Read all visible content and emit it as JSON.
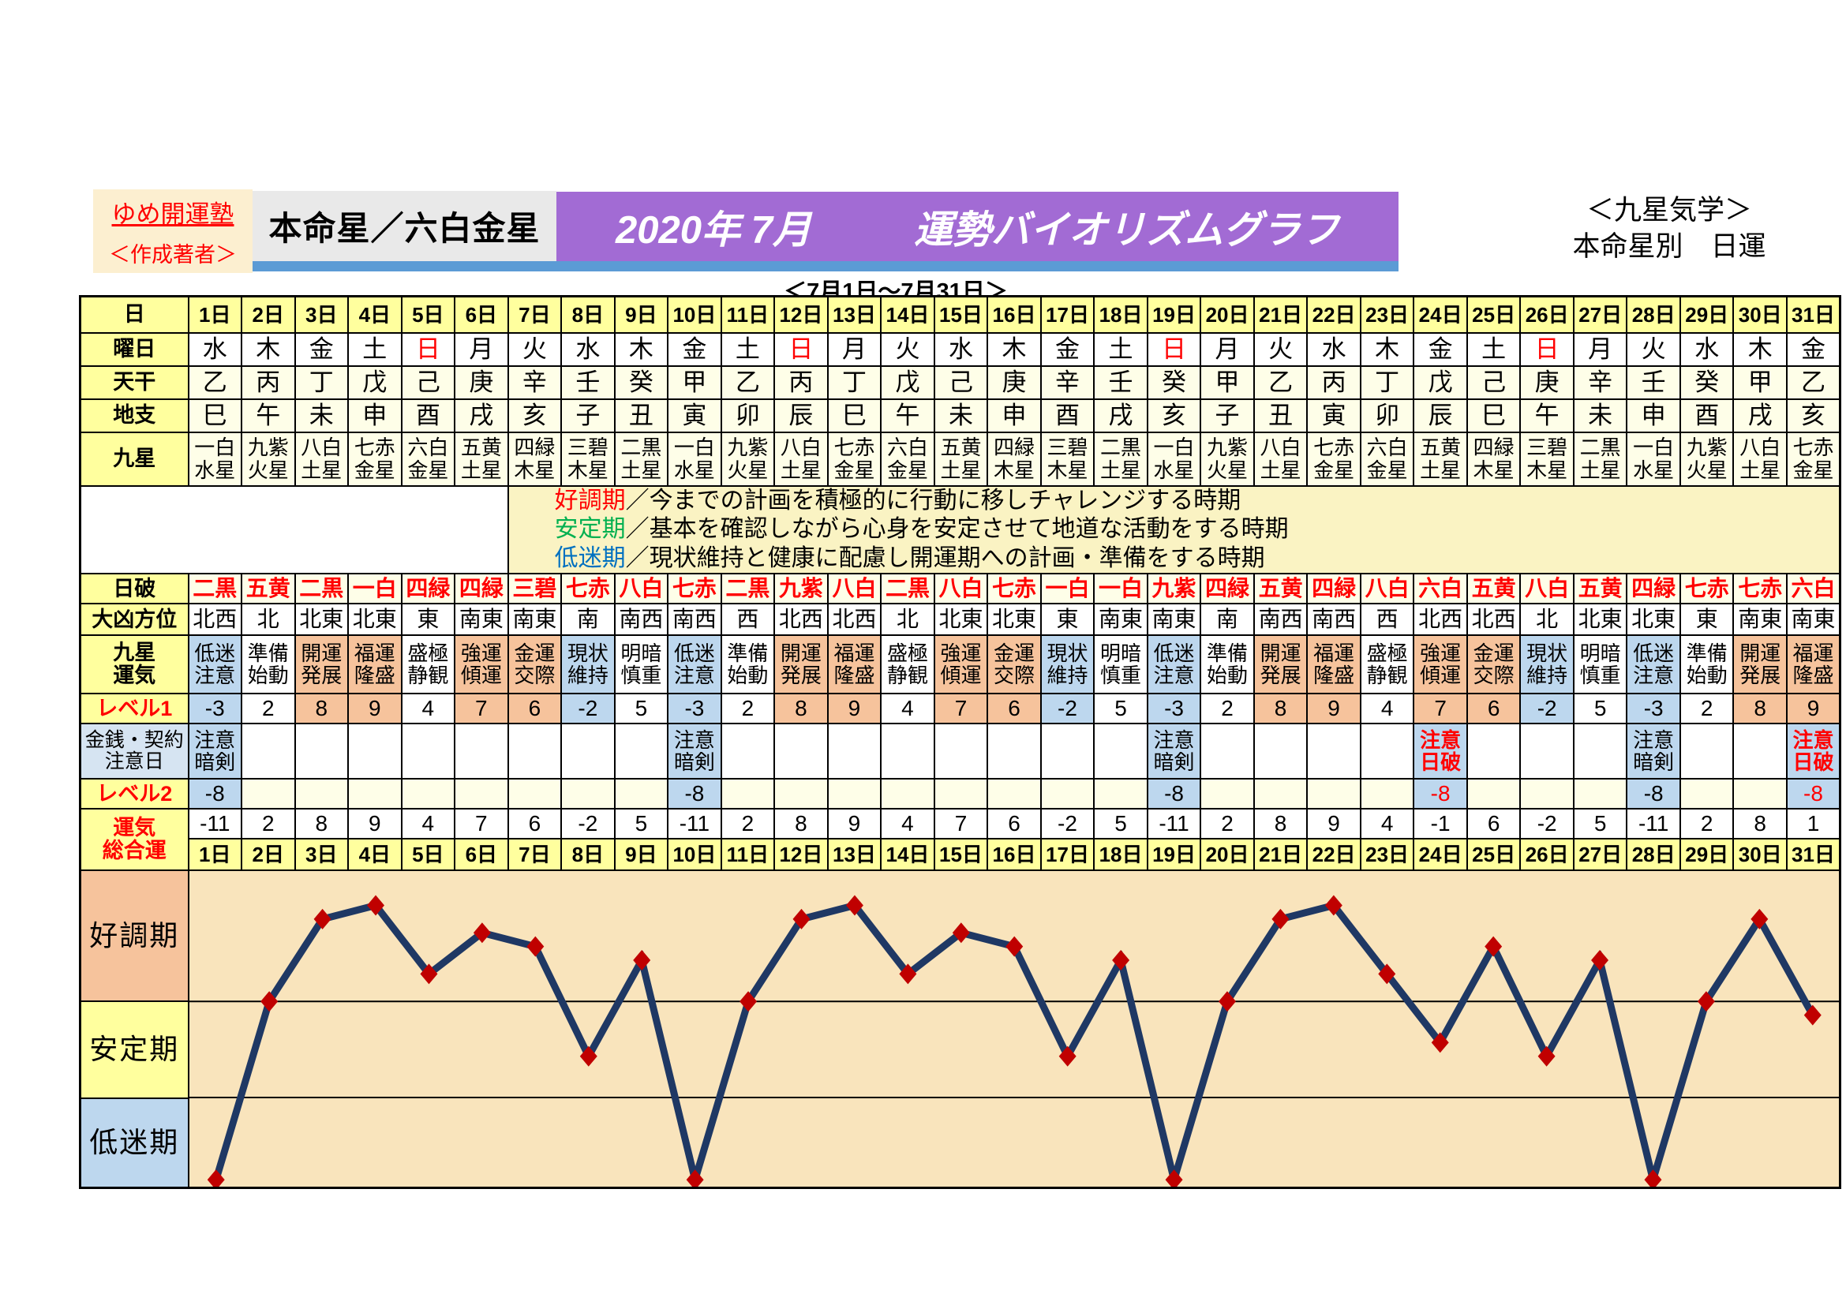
{
  "colors": {
    "banner_purple": "#A26BD4",
    "underline_blue": "#5B9BD5",
    "label_yellow": "#FFFF9E",
    "ivory": "#FEFEE8",
    "good_tone": "#F6C39C",
    "low_tone": "#BDD7EE",
    "line_navy": "#1F3864",
    "marker_red": "#C00000",
    "plot_background": "#F9E4BC",
    "term_good": "#FF0000",
    "term_stable": "#00B050",
    "term_slump": "#0070C0"
  },
  "header": {
    "brand": "ゆめ開運塾",
    "brand_sub": "＜作成著者＞",
    "honmeisei": "本命星／六白金星",
    "title_date": "2020年 7月",
    "title_main": "運勢バイオリズムグラフ",
    "caption": "＜7月1日～7月31日＞",
    "right_line1": "＜九星気学＞",
    "right_line2": "本命星別　日運"
  },
  "legend": {
    "items": [
      {
        "term": "好調期",
        "color": "#FF0000",
        "desc": "／今までの計画を積極的に行動に移しチャレンジする時期"
      },
      {
        "term": "安定期",
        "color": "#00B050",
        "desc": "／基本を確認しながら心身を安定させて地道な活動をする時期"
      },
      {
        "term": "低迷期",
        "color": "#0070C0",
        "desc": "／現状維持と健康に配慮し開運期への計画・準備をする時期"
      }
    ]
  },
  "table": {
    "row_labels": {
      "day": "日",
      "weekday": "曜日",
      "tenkan": "天干",
      "chishi": "地支",
      "kyusei": "九星",
      "nippa": "日破",
      "daikyo": "大凶方位",
      "unki": "九星\n運気",
      "level1": "レベル1",
      "caution": "金銭・契約\n注意日",
      "level2": "レベル2",
      "sogo": "運気\n総合運"
    },
    "days": [
      "1日",
      "2日",
      "3日",
      "4日",
      "5日",
      "6日",
      "7日",
      "8日",
      "9日",
      "10日",
      "11日",
      "12日",
      "13日",
      "14日",
      "15日",
      "16日",
      "17日",
      "18日",
      "19日",
      "20日",
      "21日",
      "22日",
      "23日",
      "24日",
      "25日",
      "26日",
      "27日",
      "28日",
      "29日",
      "30日",
      "31日"
    ],
    "weekdays": [
      "水",
      "木",
      "金",
      "土",
      "日",
      "月",
      "火",
      "水",
      "木",
      "金",
      "土",
      "日",
      "月",
      "火",
      "水",
      "木",
      "金",
      "土",
      "日",
      "月",
      "火",
      "水",
      "木",
      "金",
      "土",
      "日",
      "月",
      "火",
      "水",
      "木",
      "金"
    ],
    "sunday_mark": "日",
    "tenkan": [
      "乙",
      "丙",
      "丁",
      "戊",
      "己",
      "庚",
      "辛",
      "壬",
      "癸",
      "甲",
      "乙",
      "丙",
      "丁",
      "戊",
      "己",
      "庚",
      "辛",
      "壬",
      "癸",
      "甲",
      "乙",
      "丙",
      "丁",
      "戊",
      "己",
      "庚",
      "辛",
      "壬",
      "癸",
      "甲",
      "乙"
    ],
    "chishi": [
      "巳",
      "午",
      "未",
      "申",
      "酉",
      "戌",
      "亥",
      "子",
      "丑",
      "寅",
      "卯",
      "辰",
      "巳",
      "午",
      "未",
      "申",
      "酉",
      "戌",
      "亥",
      "子",
      "丑",
      "寅",
      "卯",
      "辰",
      "巳",
      "午",
      "未",
      "申",
      "酉",
      "戌",
      "亥"
    ],
    "kyusei": [
      "一白水星",
      "九紫火星",
      "八白土星",
      "七赤金星",
      "六白金星",
      "五黄土星",
      "四緑木星",
      "三碧木星",
      "二黒土星",
      "一白水星",
      "九紫火星",
      "八白土星",
      "七赤金星",
      "六白金星",
      "五黄土星",
      "四緑木星",
      "三碧木星",
      "二黒土星",
      "一白水星",
      "九紫火星",
      "八白土星",
      "七赤金星",
      "六白金星",
      "五黄土星",
      "四緑木星",
      "三碧木星",
      "二黒土星",
      "一白水星",
      "九紫火星",
      "八白土星",
      "七赤金星"
    ],
    "nippa": [
      "二黒",
      "五黄",
      "二黒",
      "一白",
      "四緑",
      "四緑",
      "三碧",
      "七赤",
      "八白",
      "七赤",
      "二黒",
      "九紫",
      "八白",
      "二黒",
      "八白",
      "七赤",
      "一白",
      "一白",
      "九紫",
      "四緑",
      "五黄",
      "四緑",
      "八白",
      "六白",
      "五黄",
      "八白",
      "五黄",
      "四緑",
      "七赤",
      "七赤",
      "六白"
    ],
    "daikyo": [
      "北西",
      "北",
      "北東",
      "北東",
      "東",
      "南東",
      "南東",
      "南",
      "南西",
      "南西",
      "西",
      "北西",
      "北西",
      "北",
      "北東",
      "北東",
      "東",
      "南東",
      "南東",
      "南",
      "南西",
      "南西",
      "西",
      "北西",
      "北西",
      "北",
      "北東",
      "北東",
      "東",
      "南東",
      "南東"
    ],
    "unki": [
      "低迷注意",
      "準備始動",
      "開運発展",
      "福運隆盛",
      "盛極静観",
      "強運傾運",
      "金運交際",
      "現状維持",
      "明暗慎重",
      "低迷注意",
      "準備始動",
      "開運発展",
      "福運隆盛",
      "盛極静観",
      "強運傾運",
      "金運交際",
      "現状維持",
      "明暗慎重",
      "低迷注意",
      "準備始動",
      "開運発展",
      "福運隆盛",
      "盛極静観",
      "強運傾運",
      "金運交際",
      "現状維持",
      "明暗慎重",
      "低迷注意",
      "準備始動",
      "開運発展",
      "福運隆盛"
    ],
    "level1": [
      -3,
      2,
      8,
      9,
      4,
      7,
      6,
      -2,
      5,
      -3,
      2,
      8,
      9,
      4,
      7,
      6,
      -2,
      5,
      -3,
      2,
      8,
      9,
      4,
      7,
      6,
      -2,
      5,
      -3,
      2,
      8,
      9
    ],
    "caution": [
      "注意暗剣",
      null,
      null,
      null,
      null,
      null,
      null,
      null,
      null,
      "注意暗剣",
      null,
      null,
      null,
      null,
      null,
      null,
      null,
      null,
      "注意暗剣",
      null,
      null,
      null,
      null,
      "注意日破",
      null,
      null,
      null,
      "注意暗剣",
      null,
      null,
      "注意日破"
    ],
    "level2": [
      -8,
      null,
      null,
      null,
      null,
      null,
      null,
      null,
      null,
      -8,
      null,
      null,
      null,
      null,
      null,
      null,
      null,
      null,
      -8,
      null,
      null,
      null,
      null,
      -8,
      null,
      null,
      null,
      -8,
      null,
      null,
      -8
    ],
    "sogo": [
      -11,
      2,
      8,
      9,
      4,
      7,
      6,
      -2,
      5,
      -11,
      2,
      8,
      9,
      4,
      7,
      6,
      -2,
      5,
      -11,
      2,
      8,
      9,
      4,
      -1,
      6,
      -2,
      5,
      -11,
      2,
      8,
      1
    ]
  },
  "chart_data": {
    "type": "line",
    "title": "運勢バイオリズムグラフ 2020年7月 本命星／六白金星",
    "xlabel": "日",
    "ylabel": "運気総合運",
    "x": [
      1,
      2,
      3,
      4,
      5,
      6,
      7,
      8,
      9,
      10,
      11,
      12,
      13,
      14,
      15,
      16,
      17,
      18,
      19,
      20,
      21,
      22,
      23,
      24,
      25,
      26,
      27,
      28,
      29,
      30,
      31
    ],
    "values": [
      -11,
      2,
      8,
      9,
      4,
      7,
      6,
      -2,
      5,
      -11,
      2,
      8,
      9,
      4,
      7,
      6,
      -2,
      5,
      -11,
      2,
      8,
      9,
      4,
      -1,
      6,
      -2,
      5,
      -11,
      2,
      8,
      1
    ],
    "ylim": [
      -11.5,
      11.5
    ],
    "grid": false,
    "legend_position": "none",
    "bands": [
      {
        "label": "好調期",
        "from": 2,
        "to": 11.5
      },
      {
        "label": "安定期",
        "from": -5,
        "to": 2
      },
      {
        "label": "低迷期",
        "from": -11.5,
        "to": -5
      }
    ],
    "line_color": "#1F3864",
    "marker": "diamond",
    "marker_color": "#C00000"
  }
}
